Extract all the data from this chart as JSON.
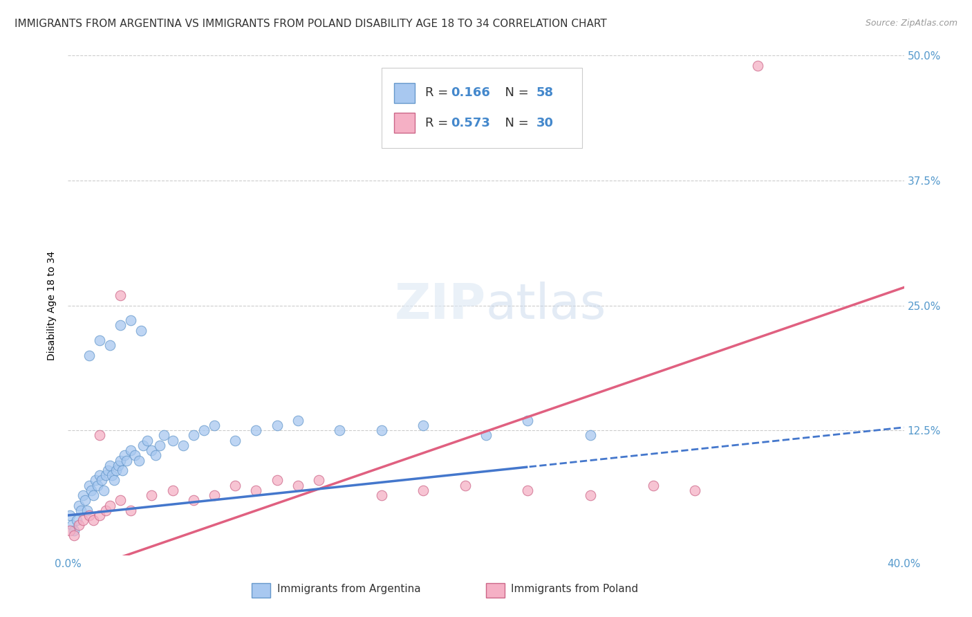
{
  "title": "IMMIGRANTS FROM ARGENTINA VS IMMIGRANTS FROM POLAND DISABILITY AGE 18 TO 34 CORRELATION CHART",
  "source": "Source: ZipAtlas.com",
  "ylabel": "Disability Age 18 to 34",
  "xlim": [
    0.0,
    0.4
  ],
  "ylim": [
    0.0,
    0.5
  ],
  "xtick_vals": [
    0.0,
    0.1,
    0.2,
    0.3,
    0.4
  ],
  "ytick_vals": [
    0.0,
    0.125,
    0.25,
    0.375,
    0.5
  ],
  "xtick_labels": [
    "0.0%",
    "",
    "",
    "",
    "40.0%"
  ],
  "ytick_labels_left": [
    "",
    "",
    "",
    "",
    ""
  ],
  "ytick_labels_right": [
    "",
    "12.5%",
    "25.0%",
    "37.5%",
    "50.0%"
  ],
  "argentina_color": "#a8c8f0",
  "argentina_edge": "#6699cc",
  "poland_color": "#f5b0c5",
  "poland_edge": "#cc6688",
  "legend_argentina_label": "Immigrants from Argentina",
  "legend_poland_label": "Immigrants from Poland",
  "r_argentina": 0.166,
  "n_argentina": 58,
  "r_poland": 0.573,
  "n_poland": 30,
  "argentina_line_color": "#4477cc",
  "poland_line_color": "#e06080",
  "background_color": "#ffffff",
  "grid_color": "#cccccc",
  "title_fontsize": 11,
  "axis_label_fontsize": 10,
  "tick_fontsize": 11,
  "arg_line_solid_end": 0.22,
  "pol_line_intercept": -0.02,
  "pol_line_slope": 0.72,
  "arg_line_intercept": 0.04,
  "arg_line_slope": 0.22
}
